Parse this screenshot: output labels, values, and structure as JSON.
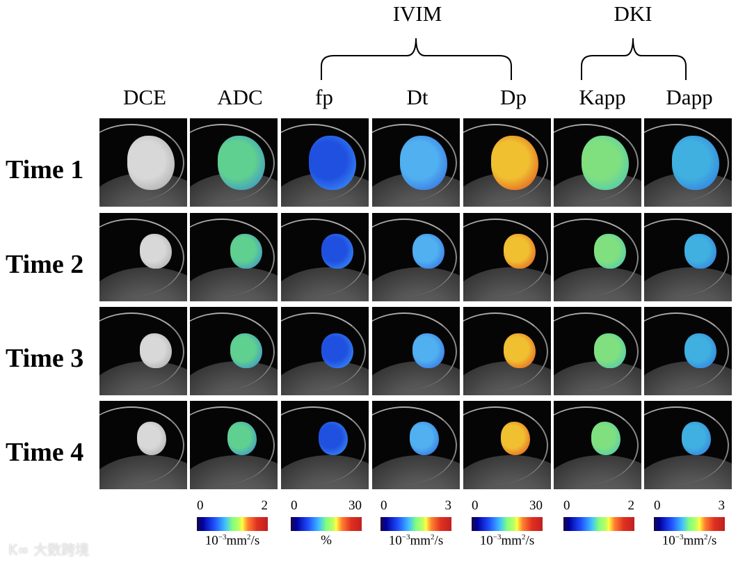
{
  "groups": [
    {
      "label": "IVIM"
    },
    {
      "label": "DKI"
    }
  ],
  "columns": [
    {
      "label": "DCE",
      "tumor": "#d8d8d8",
      "tumor2": "#a0a0a0"
    },
    {
      "label": "ADC",
      "tumor": "#60d090",
      "tumor2": "#3080e0"
    },
    {
      "label": "fp",
      "tumor": "#2050e0",
      "tumor2": "#40a0ff"
    },
    {
      "label": "Dt",
      "tumor": "#50b0f0",
      "tumor2": "#3060e0"
    },
    {
      "label": "Dp",
      "tumor": "#f0c030",
      "tumor2": "#e04020"
    },
    {
      "label": "Kapp",
      "tumor": "#80e080",
      "tumor2": "#40c0c0"
    },
    {
      "label": "Dapp",
      "tumor": "#40b0e0",
      "tumor2": "#3070e0"
    }
  ],
  "rows": [
    {
      "label": "Time 1"
    },
    {
      "label": "Time 2"
    },
    {
      "label": "Time 3"
    },
    {
      "label": "Time 4"
    }
  ],
  "colorbars": [
    {
      "min": "0",
      "max": "2",
      "unit_base": "10",
      "unit_exp": "−3",
      "unit_rest": "mm",
      "unit_exp2": "2",
      "unit_tail": "/s"
    },
    {
      "min": "0",
      "max": "30",
      "unit_plain": "%"
    },
    {
      "min": "0",
      "max": "3",
      "unit_base": "10",
      "unit_exp": "−3",
      "unit_rest": "mm",
      "unit_exp2": "2",
      "unit_tail": "/s"
    },
    {
      "min": "0",
      "max": "30",
      "unit_base": "10",
      "unit_exp": "−3",
      "unit_rest": "mm",
      "unit_exp2": "2",
      "unit_tail": "/s"
    },
    {
      "min": "0",
      "max": "2"
    },
    {
      "min": "0",
      "max": "3",
      "unit_base": "10",
      "unit_exp": "−3",
      "unit_rest": "mm",
      "unit_exp2": "2",
      "unit_tail": "/s"
    }
  ],
  "watermark": "大数跨境"
}
